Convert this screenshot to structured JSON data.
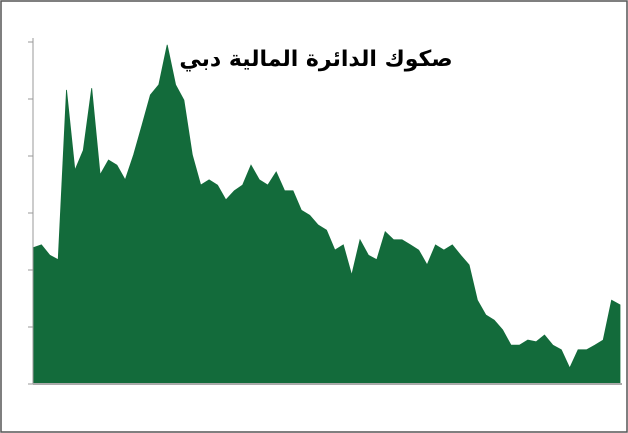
{
  "chart_data": {
    "type": "area",
    "title": "صكوك الدائرة المالية دبي",
    "color": "#136b3b",
    "ylim": [
      0,
      6
    ],
    "yticks": [
      0,
      1,
      2,
      3,
      4,
      5,
      6
    ],
    "values": [
      2.39,
      2.44,
      2.26,
      2.18,
      5.16,
      3.75,
      4.1,
      5.19,
      3.67,
      3.93,
      3.84,
      3.58,
      4.02,
      4.54,
      5.07,
      5.25,
      5.95,
      5.25,
      4.98,
      4.02,
      3.49,
      3.58,
      3.49,
      3.23,
      3.39,
      3.49,
      3.84,
      3.58,
      3.49,
      3.72,
      3.39,
      3.39,
      3.05,
      2.96,
      2.79,
      2.7,
      2.35,
      2.44,
      1.91,
      2.53,
      2.26,
      2.18,
      2.67,
      2.53,
      2.53,
      2.44,
      2.35,
      2.09,
      2.44,
      2.35,
      2.44,
      2.26,
      2.09,
      1.47,
      1.21,
      1.12,
      0.95,
      0.68,
      0.68,
      0.77,
      0.74,
      0.86,
      0.68,
      0.6,
      0.28,
      0.6,
      0.6,
      0.68,
      0.77,
      1.47,
      1.39
    ]
  }
}
